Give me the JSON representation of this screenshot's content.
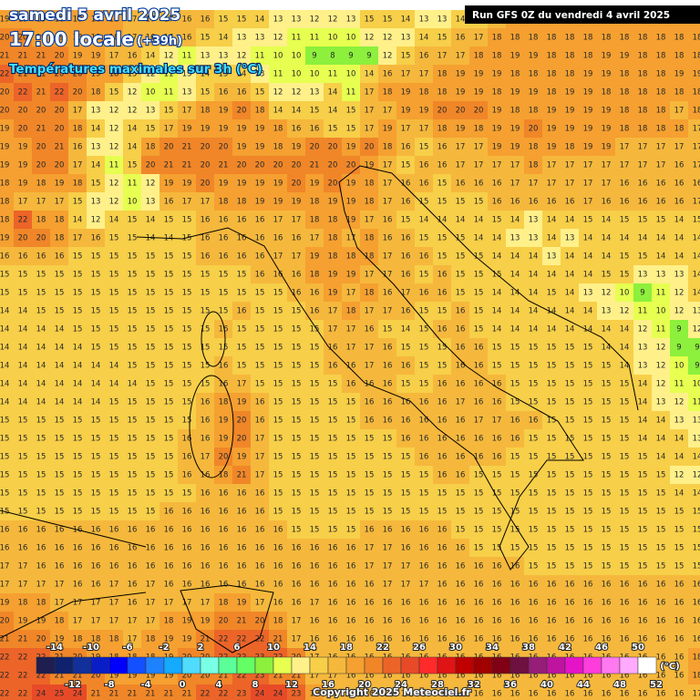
{
  "header": {
    "date": "samedi 5 avril 2025",
    "time": "17:00 locale",
    "lead": "(+39h)",
    "field": "Températures maximales sur 3h (°C)",
    "run": "Run GFS 0Z du vendredi 4 avril 2025"
  },
  "grid": {
    "rows": [
      [
        19,
        19,
        19,
        18,
        18,
        18,
        18,
        17,
        17,
        17,
        16,
        16,
        15,
        15,
        14,
        13,
        13,
        12,
        12,
        13,
        15,
        15,
        14,
        13,
        13,
        14,
        15,
        17,
        18,
        18,
        18,
        18,
        18,
        18,
        18,
        18,
        18,
        18,
        18
      ],
      [
        20,
        20,
        19,
        19,
        18,
        18,
        18,
        17,
        16,
        16,
        16,
        15,
        14,
        13,
        13,
        12,
        11,
        11,
        10,
        10,
        12,
        12,
        13,
        14,
        15,
        16,
        17,
        18,
        18,
        18,
        18,
        18,
        18,
        18,
        18,
        18,
        18,
        18,
        18
      ],
      [
        21,
        21,
        21,
        20,
        19,
        19,
        17,
        16,
        14,
        12,
        11,
        13,
        13,
        12,
        11,
        10,
        10,
        9,
        8,
        9,
        9,
        12,
        15,
        16,
        17,
        17,
        18,
        18,
        19,
        19,
        18,
        18,
        18,
        19,
        19,
        18,
        18,
        18,
        18
      ],
      [
        22,
        21,
        21,
        20,
        20,
        19,
        18,
        15,
        12,
        11,
        13,
        14,
        15,
        14,
        13,
        11,
        10,
        10,
        11,
        10,
        14,
        16,
        17,
        17,
        18,
        19,
        19,
        19,
        18,
        18,
        18,
        18,
        19,
        19,
        18,
        18,
        18,
        19,
        19
      ],
      [
        20,
        22,
        21,
        22,
        20,
        18,
        15,
        12,
        10,
        11,
        13,
        15,
        16,
        16,
        15,
        12,
        12,
        13,
        14,
        11,
        17,
        18,
        19,
        18,
        18,
        19,
        19,
        18,
        19,
        19,
        18,
        19,
        19,
        18,
        18,
        18,
        18,
        18,
        18
      ],
      [
        20,
        20,
        20,
        20,
        17,
        13,
        12,
        12,
        13,
        15,
        17,
        18,
        19,
        20,
        18,
        14,
        14,
        15,
        14,
        15,
        17,
        17,
        19,
        19,
        20,
        20,
        20,
        19,
        18,
        18,
        19,
        19,
        19,
        19,
        18,
        18,
        18,
        17,
        18
      ],
      [
        19,
        20,
        21,
        20,
        18,
        14,
        12,
        14,
        15,
        17,
        19,
        19,
        19,
        19,
        19,
        18,
        16,
        16,
        15,
        15,
        17,
        19,
        17,
        17,
        18,
        19,
        18,
        19,
        19,
        20,
        19,
        19,
        19,
        19,
        18,
        18,
        18,
        18,
        17
      ],
      [
        19,
        19,
        20,
        21,
        16,
        13,
        12,
        14,
        18,
        20,
        21,
        20,
        20,
        19,
        19,
        18,
        19,
        20,
        20,
        19,
        20,
        18,
        16,
        15,
        16,
        17,
        17,
        19,
        19,
        18,
        19,
        18,
        19,
        19,
        17,
        17,
        17,
        17,
        17
      ],
      [
        19,
        19,
        20,
        20,
        17,
        14,
        11,
        15,
        20,
        21,
        21,
        20,
        21,
        20,
        20,
        20,
        20,
        21,
        20,
        20,
        19,
        17,
        15,
        16,
        16,
        17,
        17,
        17,
        17,
        18,
        17,
        17,
        17,
        17,
        17,
        17,
        17,
        16,
        17
      ],
      [
        18,
        19,
        18,
        19,
        18,
        15,
        12,
        11,
        12,
        19,
        19,
        20,
        19,
        19,
        19,
        19,
        20,
        19,
        20,
        19,
        18,
        17,
        16,
        16,
        15,
        16,
        16,
        16,
        17,
        17,
        17,
        17,
        17,
        17,
        16,
        16,
        16,
        16,
        16
      ],
      [
        18,
        17,
        17,
        17,
        15,
        13,
        12,
        10,
        13,
        16,
        17,
        17,
        18,
        18,
        19,
        19,
        19,
        18,
        19,
        19,
        18,
        17,
        16,
        15,
        15,
        15,
        15,
        16,
        16,
        16,
        16,
        16,
        17,
        16,
        16,
        16,
        16,
        16,
        17
      ],
      [
        18,
        22,
        18,
        18,
        14,
        12,
        14,
        15,
        14,
        15,
        15,
        16,
        16,
        16,
        16,
        17,
        17,
        18,
        18,
        19,
        17,
        16,
        15,
        14,
        14,
        14,
        14,
        15,
        14,
        13,
        14,
        14,
        15,
        14,
        15,
        15,
        15,
        14,
        15
      ],
      [
        19,
        20,
        20,
        18,
        17,
        16,
        15,
        15,
        14,
        14,
        15,
        16,
        16,
        16,
        16,
        16,
        16,
        17,
        18,
        17,
        18,
        16,
        16,
        15,
        15,
        15,
        14,
        14,
        13,
        13,
        14,
        13,
        14,
        14,
        14,
        14,
        14,
        14,
        14
      ],
      [
        16,
        16,
        16,
        16,
        15,
        15,
        15,
        15,
        15,
        15,
        15,
        16,
        16,
        16,
        16,
        17,
        17,
        19,
        18,
        18,
        18,
        17,
        16,
        16,
        15,
        15,
        15,
        14,
        14,
        14,
        13,
        14,
        14,
        14,
        15,
        15,
        14,
        14,
        14
      ],
      [
        15,
        15,
        15,
        15,
        15,
        15,
        15,
        15,
        15,
        15,
        15,
        15,
        15,
        15,
        16,
        16,
        16,
        18,
        19,
        19,
        17,
        17,
        16,
        15,
        16,
        15,
        15,
        15,
        14,
        14,
        14,
        14,
        14,
        15,
        15,
        13,
        13,
        13,
        14
      ],
      [
        15,
        15,
        15,
        15,
        15,
        15,
        15,
        15,
        15,
        15,
        15,
        15,
        15,
        15,
        15,
        15,
        16,
        16,
        19,
        17,
        18,
        16,
        17,
        16,
        16,
        15,
        15,
        14,
        14,
        14,
        15,
        14,
        13,
        12,
        10,
        9,
        11,
        12,
        14
      ],
      [
        14,
        14,
        15,
        15,
        15,
        15,
        15,
        15,
        15,
        15,
        15,
        15,
        15,
        16,
        15,
        15,
        15,
        16,
        17,
        18,
        17,
        17,
        16,
        15,
        15,
        16,
        15,
        14,
        14,
        14,
        14,
        14,
        14,
        13,
        12,
        11,
        10,
        12,
        13
      ],
      [
        14,
        14,
        14,
        14,
        15,
        15,
        15,
        15,
        15,
        15,
        15,
        15,
        16,
        15,
        15,
        15,
        15,
        15,
        17,
        17,
        16,
        15,
        14,
        15,
        16,
        16,
        15,
        14,
        14,
        14,
        14,
        14,
        14,
        14,
        14,
        12,
        11,
        9,
        12
      ],
      [
        14,
        14,
        14,
        14,
        14,
        15,
        15,
        15,
        15,
        15,
        15,
        15,
        15,
        15,
        15,
        15,
        15,
        15,
        16,
        17,
        17,
        16,
        15,
        15,
        15,
        16,
        16,
        15,
        15,
        15,
        15,
        15,
        15,
        14,
        14,
        13,
        12,
        9,
        9
      ],
      [
        14,
        14,
        14,
        14,
        14,
        14,
        14,
        15,
        15,
        15,
        15,
        15,
        16,
        15,
        15,
        15,
        15,
        15,
        16,
        16,
        17,
        16,
        16,
        15,
        15,
        16,
        16,
        15,
        15,
        15,
        15,
        15,
        15,
        15,
        14,
        13,
        12,
        10,
        9
      ],
      [
        14,
        14,
        14,
        14,
        14,
        14,
        14,
        14,
        15,
        15,
        15,
        15,
        16,
        17,
        15,
        15,
        15,
        15,
        15,
        16,
        16,
        16,
        15,
        15,
        16,
        16,
        16,
        16,
        15,
        15,
        15,
        15,
        15,
        15,
        15,
        14,
        12,
        11,
        10
      ],
      [
        14,
        14,
        14,
        14,
        14,
        14,
        15,
        15,
        15,
        15,
        15,
        16,
        18,
        19,
        16,
        15,
        15,
        15,
        15,
        15,
        16,
        16,
        16,
        16,
        16,
        17,
        16,
        16,
        15,
        15,
        15,
        15,
        15,
        15,
        15,
        14,
        13,
        12,
        11
      ],
      [
        15,
        15,
        15,
        15,
        15,
        15,
        15,
        15,
        15,
        15,
        15,
        16,
        19,
        20,
        16,
        15,
        15,
        15,
        15,
        15,
        16,
        16,
        16,
        16,
        16,
        16,
        17,
        17,
        16,
        16,
        15,
        15,
        15,
        15,
        15,
        14,
        14,
        13,
        13
      ],
      [
        15,
        15,
        15,
        15,
        15,
        15,
        15,
        15,
        15,
        15,
        16,
        16,
        19,
        20,
        17,
        15,
        15,
        15,
        15,
        15,
        15,
        15,
        16,
        16,
        16,
        16,
        16,
        16,
        16,
        15,
        15,
        15,
        15,
        15,
        15,
        14,
        14,
        14,
        13
      ],
      [
        15,
        15,
        15,
        15,
        15,
        15,
        15,
        15,
        15,
        15,
        16,
        17,
        20,
        19,
        17,
        15,
        15,
        15,
        15,
        15,
        15,
        15,
        15,
        16,
        16,
        16,
        16,
        16,
        15,
        15,
        15,
        15,
        15,
        15,
        15,
        15,
        14,
        14,
        14
      ],
      [
        15,
        15,
        15,
        15,
        15,
        15,
        15,
        15,
        15,
        15,
        16,
        16,
        18,
        21,
        17,
        15,
        15,
        15,
        15,
        15,
        15,
        15,
        15,
        15,
        16,
        16,
        15,
        15,
        15,
        15,
        15,
        15,
        15,
        15,
        15,
        15,
        15,
        12,
        12
      ],
      [
        15,
        15,
        15,
        15,
        15,
        15,
        15,
        15,
        15,
        15,
        15,
        16,
        16,
        16,
        16,
        15,
        15,
        15,
        15,
        15,
        15,
        15,
        15,
        15,
        15,
        15,
        15,
        15,
        15,
        15,
        15,
        15,
        15,
        15,
        15,
        15,
        15,
        14,
        14
      ],
      [
        15,
        15,
        15,
        15,
        15,
        15,
        15,
        15,
        15,
        16,
        16,
        16,
        16,
        16,
        16,
        15,
        15,
        15,
        15,
        15,
        15,
        15,
        15,
        15,
        15,
        15,
        15,
        15,
        15,
        15,
        15,
        15,
        15,
        15,
        15,
        15,
        15,
        15,
        15
      ],
      [
        16,
        16,
        16,
        16,
        16,
        16,
        16,
        16,
        16,
        16,
        16,
        16,
        16,
        16,
        16,
        16,
        15,
        15,
        15,
        15,
        16,
        16,
        16,
        16,
        16,
        15,
        15,
        15,
        15,
        15,
        15,
        15,
        15,
        15,
        15,
        15,
        15,
        15,
        15
      ],
      [
        16,
        16,
        16,
        16,
        16,
        16,
        16,
        16,
        16,
        16,
        16,
        16,
        16,
        16,
        16,
        16,
        16,
        16,
        16,
        16,
        17,
        17,
        16,
        16,
        16,
        16,
        15,
        15,
        15,
        15,
        15,
        15,
        15,
        15,
        15,
        15,
        15,
        15,
        15
      ],
      [
        17,
        17,
        16,
        16,
        16,
        16,
        16,
        16,
        16,
        16,
        16,
        16,
        16,
        16,
        16,
        16,
        16,
        16,
        16,
        16,
        17,
        17,
        17,
        16,
        16,
        16,
        16,
        16,
        16,
        15,
        15,
        15,
        15,
        15,
        15,
        15,
        15,
        15,
        15
      ],
      [
        17,
        17,
        17,
        17,
        16,
        16,
        17,
        16,
        17,
        16,
        16,
        16,
        16,
        16,
        16,
        16,
        16,
        16,
        16,
        16,
        16,
        17,
        17,
        17,
        16,
        16,
        16,
        16,
        16,
        16,
        16,
        16,
        16,
        16,
        16,
        16,
        16,
        16,
        16
      ],
      [
        19,
        18,
        18,
        17,
        17,
        17,
        17,
        16,
        17,
        17,
        17,
        17,
        18,
        19,
        17,
        16,
        16,
        17,
        16,
        16,
        16,
        16,
        16,
        16,
        16,
        16,
        16,
        16,
        16,
        16,
        16,
        16,
        16,
        16,
        16,
        16,
        16,
        16,
        16
      ],
      [
        20,
        19,
        19,
        18,
        17,
        17,
        17,
        17,
        17,
        18,
        19,
        19,
        20,
        21,
        20,
        18,
        17,
        16,
        16,
        16,
        16,
        16,
        16,
        16,
        16,
        16,
        16,
        16,
        16,
        16,
        16,
        16,
        16,
        16,
        16,
        16,
        16,
        16,
        16
      ],
      [
        21,
        21,
        20,
        19,
        18,
        18,
        18,
        17,
        18,
        19,
        19,
        21,
        22,
        22,
        22,
        21,
        17,
        16,
        16,
        16,
        16,
        16,
        16,
        16,
        16,
        16,
        16,
        16,
        16,
        16,
        16,
        16,
        16,
        16,
        16,
        16,
        16,
        16,
        16
      ],
      [
        22,
        22,
        22,
        21,
        20,
        19,
        18,
        18,
        18,
        19,
        20,
        20,
        22,
        22,
        23,
        22,
        20,
        17,
        16,
        16,
        16,
        16,
        16,
        16,
        16,
        16,
        16,
        16,
        16,
        16,
        16,
        16,
        16,
        16,
        16,
        16,
        16,
        16,
        18
      ],
      [
        22,
        22,
        22,
        21,
        21,
        20,
        19,
        19,
        19,
        19,
        20,
        20,
        21,
        22,
        23,
        21,
        21,
        17,
        17,
        16,
        16,
        16,
        16,
        16,
        16,
        16,
        16,
        16,
        16,
        16,
        16,
        16,
        16,
        16,
        16,
        16,
        16,
        16,
        18
      ],
      [
        22,
        22,
        24,
        25,
        24,
        21,
        21,
        21,
        21,
        21,
        21,
        22,
        22,
        23,
        24,
        24,
        23,
        19,
        17,
        17,
        16,
        16,
        16,
        16,
        16,
        16,
        16,
        16,
        16,
        16,
        16,
        16,
        16,
        16,
        16,
        16,
        16,
        16,
        17
      ]
    ]
  },
  "legend": {
    "ticks": [
      -14,
      -12,
      -10,
      -8,
      -6,
      -4,
      -2,
      0,
      2,
      4,
      6,
      8,
      10,
      12,
      14,
      16,
      18,
      20,
      22,
      24,
      26,
      28,
      30,
      32,
      34,
      36,
      38,
      40,
      42,
      44,
      46,
      48,
      50,
      52
    ],
    "colors": [
      "#1e1e50",
      "#10226e",
      "#12309a",
      "#0a1ec8",
      "#0000ff",
      "#1450ff",
      "#1e82ff",
      "#14aaff",
      "#50dcff",
      "#78ffe6",
      "#5aff9a",
      "#64ff64",
      "#8cf03c",
      "#e6ff50",
      "#fff08a",
      "#f7cf48",
      "#f5b83c",
      "#f5a030",
      "#f08628",
      "#ec6428",
      "#e84a28",
      "#ff2a2a",
      "#e01414",
      "#c00000",
      "#a00000",
      "#800014",
      "#6e1040",
      "#961e78",
      "#be14a0",
      "#e614c8",
      "#ff3cdc",
      "#ff78f0",
      "#ffaaff",
      "#ffffff"
    ],
    "unit": "(°C)"
  },
  "footer": {
    "copyright": "Copyright 2025 Meteociel.fr"
  }
}
